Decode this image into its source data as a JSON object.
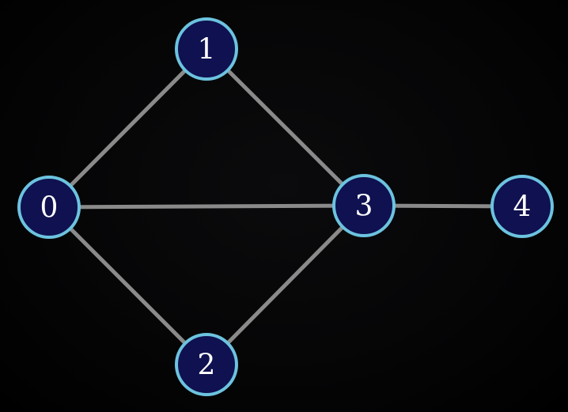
{
  "graph": {
    "colors": {
      "background": "#000000",
      "edge": "#8a8a8a",
      "node_fill": "#0f1150",
      "node_stroke": "#6cc3df",
      "label": "#ffffff"
    },
    "nodes": [
      {
        "id": "0",
        "label": "0"
      },
      {
        "id": "1",
        "label": "1"
      },
      {
        "id": "2",
        "label": "2"
      },
      {
        "id": "3",
        "label": "3"
      },
      {
        "id": "4",
        "label": "4"
      }
    ],
    "edges": [
      {
        "from": "0",
        "to": "1"
      },
      {
        "from": "0",
        "to": "3"
      },
      {
        "from": "0",
        "to": "2"
      },
      {
        "from": "1",
        "to": "3"
      },
      {
        "from": "2",
        "to": "3"
      },
      {
        "from": "3",
        "to": "4"
      }
    ]
  }
}
